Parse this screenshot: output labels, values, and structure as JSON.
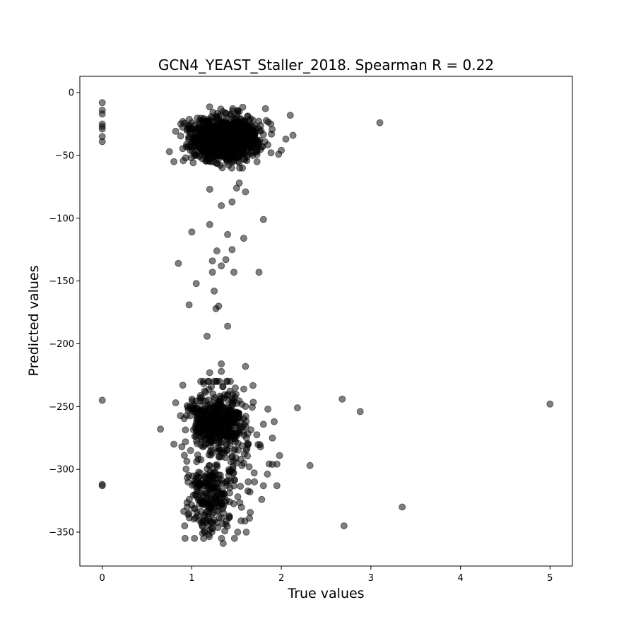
{
  "chart_data": {
    "type": "scatter",
    "title": "GCN4_YEAST_Staller_2018. Spearman R = 0.22",
    "xlabel": "True values",
    "ylabel": "Predicted values",
    "xlim": [
      -0.25,
      5.25
    ],
    "ylim": [
      -377,
      13
    ],
    "xticks": [
      0,
      1,
      2,
      3,
      4,
      5
    ],
    "yticks": [
      0,
      -50,
      -100,
      -150,
      -200,
      -250,
      -300,
      -350
    ],
    "xtick_labels": [
      "0",
      "1",
      "2",
      "3",
      "4",
      "5"
    ],
    "ytick_labels": [
      "0",
      "−50",
      "−100",
      "−150",
      "−200",
      "−250",
      "−300",
      "−350"
    ],
    "grid": false,
    "marker_color": "#000000",
    "marker_opacity": 0.5,
    "points": [
      [
        0.0,
        -8
      ],
      [
        0.0,
        -14
      ],
      [
        0.0,
        -17
      ],
      [
        0.0,
        -25
      ],
      [
        0.0,
        -27
      ],
      [
        0.0,
        -29
      ],
      [
        0.0,
        -35
      ],
      [
        0.0,
        -39
      ],
      [
        0.0,
        -245
      ],
      [
        0.0,
        -312
      ],
      [
        0.0,
        -313
      ],
      [
        3.1,
        -24
      ],
      [
        2.1,
        -18
      ],
      [
        2.05,
        -37
      ],
      [
        2.13,
        -34
      ],
      [
        1.97,
        -49
      ],
      [
        0.75,
        -47
      ],
      [
        0.8,
        -55
      ],
      [
        1.8,
        -101
      ],
      [
        1.58,
        -116
      ],
      [
        1.2,
        -77
      ],
      [
        1.6,
        -79
      ],
      [
        1.5,
        -76
      ],
      [
        1.53,
        -72
      ],
      [
        1.45,
        -87
      ],
      [
        1.33,
        -90
      ],
      [
        1.2,
        -105
      ],
      [
        1.0,
        -111
      ],
      [
        1.4,
        -113
      ],
      [
        1.28,
        -126
      ],
      [
        1.45,
        -125
      ],
      [
        0.85,
        -136
      ],
      [
        1.23,
        -134
      ],
      [
        1.38,
        -133
      ],
      [
        1.33,
        -138
      ],
      [
        1.23,
        -143
      ],
      [
        1.47,
        -143
      ],
      [
        1.75,
        -143
      ],
      [
        1.05,
        -152
      ],
      [
        1.25,
        -158
      ],
      [
        0.97,
        -169
      ],
      [
        1.3,
        -170
      ],
      [
        1.27,
        -172
      ],
      [
        1.4,
        -186
      ],
      [
        1.17,
        -194
      ],
      [
        1.6,
        -218
      ],
      [
        1.33,
        -216
      ],
      [
        1.2,
        -223
      ],
      [
        1.33,
        -222
      ],
      [
        0.9,
        -233
      ],
      [
        0.82,
        -247
      ],
      [
        0.65,
        -268
      ],
      [
        0.8,
        -280
      ],
      [
        2.18,
        -251
      ],
      [
        2.68,
        -244
      ],
      [
        2.88,
        -254
      ],
      [
        5.0,
        -248
      ],
      [
        2.32,
        -297
      ],
      [
        1.98,
        -289
      ],
      [
        1.95,
        -313
      ],
      [
        1.8,
        -313
      ],
      [
        1.78,
        -324
      ],
      [
        3.35,
        -330
      ],
      [
        2.7,
        -345
      ],
      [
        1.55,
        -341
      ],
      [
        1.35,
        -359
      ],
      [
        1.03,
        -355
      ],
      [
        0.92,
        -345
      ],
      [
        1.9,
        -296
      ],
      [
        1.9,
        -275
      ],
      [
        1.92,
        -262
      ],
      [
        1.85,
        -252
      ],
      [
        1.7,
        -310
      ],
      [
        1.63,
        -310
      ]
    ],
    "clusters": [
      {
        "cx": 1.36,
        "cy": -37,
        "sx": 0.19,
        "sy": 8.5,
        "n": 1100,
        "x_range": [
          0.82,
          2.0
        ],
        "y_range": [
          -60,
          -6
        ]
      },
      {
        "cx": 1.27,
        "cy": -262,
        "sx": 0.15,
        "sy": 10,
        "n": 420,
        "x_range": [
          0.85,
          1.8
        ],
        "y_range": [
          -290,
          -225
        ]
      },
      {
        "cx": 1.22,
        "cy": -318,
        "sx": 0.13,
        "sy": 17,
        "n": 220,
        "x_range": [
          0.88,
          1.75
        ],
        "y_range": [
          -355,
          -285
        ]
      },
      {
        "cx": 1.35,
        "cy": -285,
        "sx": 0.22,
        "sy": 30,
        "n": 160,
        "x_range": [
          0.85,
          1.95
        ],
        "y_range": [
          -350,
          -230
        ]
      }
    ]
  }
}
